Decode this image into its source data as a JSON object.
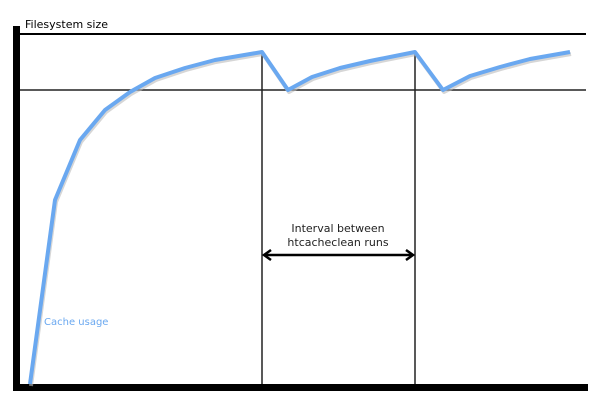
{
  "y_axis_label": "Filesystem size",
  "interval_label": [
    "Interval between",
    "htcacheclean runs"
  ],
  "series_label": "Cache usage",
  "colors": {
    "axis": "#000000",
    "series": "#6aa8f0",
    "lines": "#222222"
  }
}
